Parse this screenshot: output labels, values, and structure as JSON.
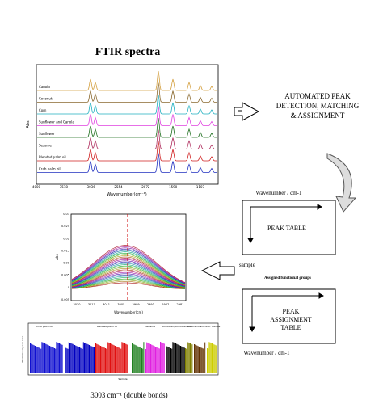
{
  "title": "FTIR spectra",
  "spectra_plot": {
    "y_label": "Abs",
    "x_label": "Wavenumber(cm⁻¹)",
    "x_ticks": [
      "4000",
      "3518",
      "3036",
      "2554",
      "2072",
      "1590",
      "1107"
    ],
    "samples": [
      "Canola",
      "Coconut",
      "Corn",
      "Sunflower and Canola",
      "Sunflower",
      "Sesame",
      "Blended palm oil",
      "Crab palm oil"
    ]
  },
  "process": "AUTOMATED PEAK DETECTION, MATCHING & ASSIGNMENT",
  "peak_table": {
    "axis_top": "Wavenumber / cm-1",
    "label": "PEAK TABLE",
    "axis_side": "sample"
  },
  "assignment_table": {
    "axis_top": "Assigned functional groups",
    "label": "PEAK ASSIGNMENT TABLE",
    "axis_bottom": "Wavenumber / cm-1"
  },
  "peak_plot": {
    "y_label": "Abs",
    "x_label": "Wavenumber(cm)",
    "y_ticks": [
      "0.03",
      "0.025",
      "0.02",
      "0.015",
      "0.01",
      "0.005",
      "0",
      "-0.005"
    ],
    "x_ticks": [
      "3030",
      "3017",
      "3011",
      "3005",
      "2999",
      "2993",
      "2987",
      "2981"
    ]
  },
  "bar_plot": {
    "groups": [
      "Crab palm oil",
      "Blended palm oil",
      "Sesame",
      "Sunflower/Sunflower and Canola",
      "Corn",
      "Coconut",
      "Canola"
    ],
    "x_label": "Sample",
    "y_label": "Normalised peak area"
  },
  "caption": "3003 cm⁻¹ (double bonds)"
}
